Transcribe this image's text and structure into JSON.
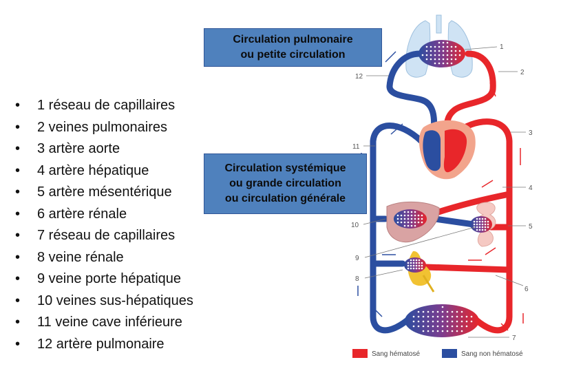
{
  "legend_items": [
    "1 réseau de capillaires",
    "2 veines pulmonaires",
    "3 artère aorte",
    "4 artère hépatique",
    "5 artère mésentérique",
    "6 artère rénale",
    "7 réseau de capillaires",
    "8 veine rénale",
    "9 veine porte hépatique",
    "10 veines sus-hépatiques",
    "11 veine cave inférieure",
    "12 artère pulmonaire"
  ],
  "callouts": {
    "pulmonary": [
      "Circulation pulmonaire",
      "ou petite circulation"
    ],
    "systemic": [
      "Circulation systémique",
      "ou grande circulation",
      "ou circulation générale"
    ]
  },
  "diagram_numbers": [
    "1",
    "2",
    "3",
    "4",
    "5",
    "6",
    "7",
    "8",
    "9",
    "10",
    "11",
    "12"
  ],
  "key": {
    "oxygenated": "Sang hématosé",
    "deoxygenated": "Sang non hématosé",
    "oxygenated_color": "#e8262a",
    "deoxygenated_color": "#2b4ea0"
  }
}
